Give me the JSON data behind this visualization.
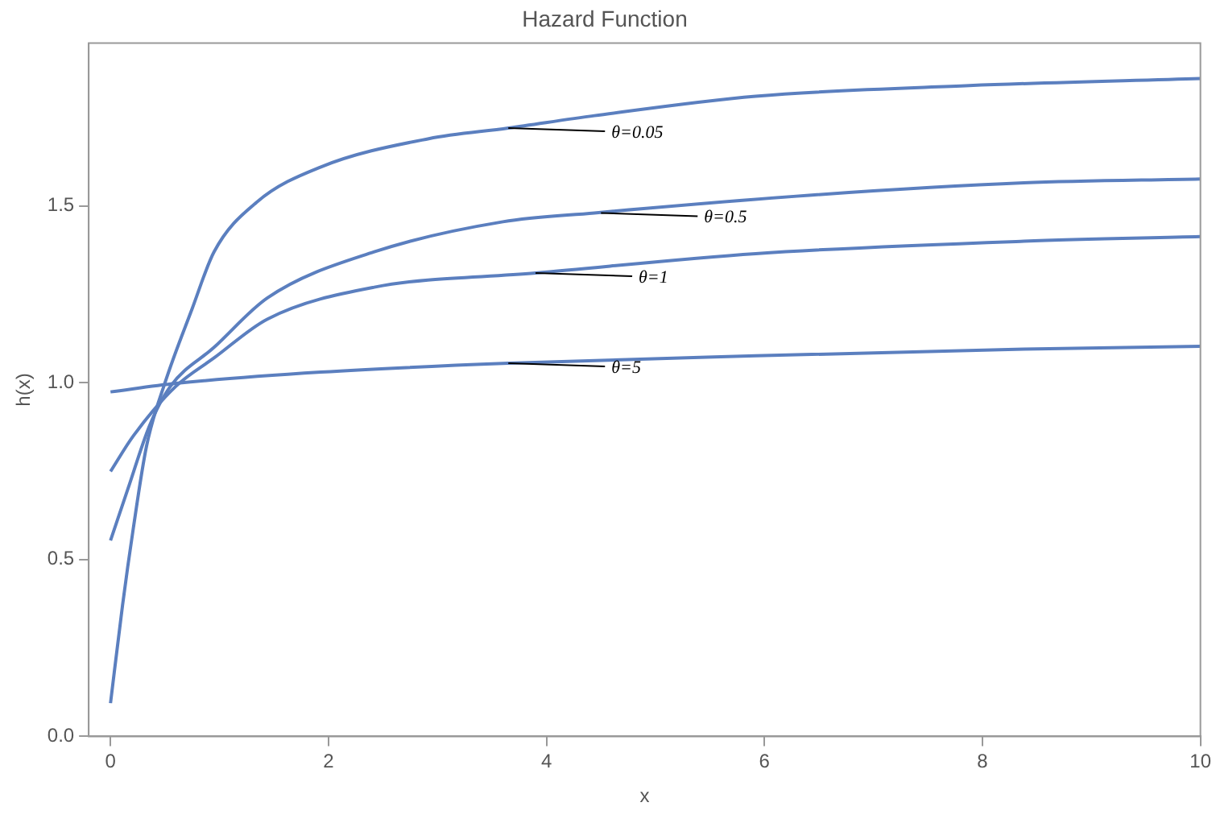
{
  "chart_data": {
    "type": "line",
    "title": "Hazard Function",
    "xlabel": "x",
    "ylabel": "h(x)",
    "xlim": [
      -0.2,
      10
    ],
    "ylim": [
      0,
      1.96
    ],
    "xticks": [
      0,
      2,
      4,
      6,
      8,
      10
    ],
    "yticks": [
      {
        "value": 0,
        "label": "0.0"
      },
      0.5,
      {
        "value": 1,
        "label": "1.0"
      },
      1.5
    ],
    "series": [
      {
        "color": "#5b7fbf",
        "x": [
          0,
          0.11,
          0.21,
          0.33,
          0.5,
          0.75,
          0.95,
          1.34,
          1.93,
          2.92,
          3.65,
          4.44,
          5.92,
          7.88,
          10
        ],
        "values": [
          0.094,
          0.37,
          0.59,
          0.82,
          1.0,
          1.21,
          1.37,
          1.51,
          1.61,
          1.69,
          1.72,
          1.755,
          1.81,
          1.84,
          1.86
        ]
      },
      {
        "color": "#5b7fbf",
        "x": [
          0,
          0.16,
          0.36,
          0.55,
          0.95,
          1.44,
          2.42,
          3.6,
          4.44,
          6.41,
          8.38,
          10
        ],
        "values": [
          0.554,
          0.7,
          0.88,
          0.99,
          1.1,
          1.24,
          1.37,
          1.455,
          1.48,
          1.53,
          1.565,
          1.576
        ]
      },
      {
        "color": "#5b7fbf",
        "x": [
          0,
          0.21,
          0.6,
          0.95,
          1.44,
          2.42,
          3.9,
          5.92,
          8.38,
          10
        ],
        "values": [
          0.749,
          0.85,
          0.99,
          1.07,
          1.18,
          1.27,
          1.31,
          1.365,
          1.4,
          1.413
        ]
      },
      {
        "color": "#5b7fbf",
        "x": [
          0,
          0.6,
          1.93,
          3.65,
          5.92,
          8.38,
          10
        ],
        "values": [
          0.974,
          0.998,
          1.03,
          1.055,
          1.076,
          1.095,
          1.103
        ]
      }
    ],
    "annotations": [
      {
        "text": "θ=0.05",
        "x": 3.65,
        "y": 1.72
      },
      {
        "text": "θ=0.5",
        "x": 4.5,
        "y": 1.48
      },
      {
        "text": "θ=1",
        "x": 3.9,
        "y": 1.31
      },
      {
        "text": "θ=5",
        "x": 3.65,
        "y": 1.055
      }
    ],
    "legend": false,
    "grid": false,
    "marker": "none",
    "line_style": "solid"
  }
}
